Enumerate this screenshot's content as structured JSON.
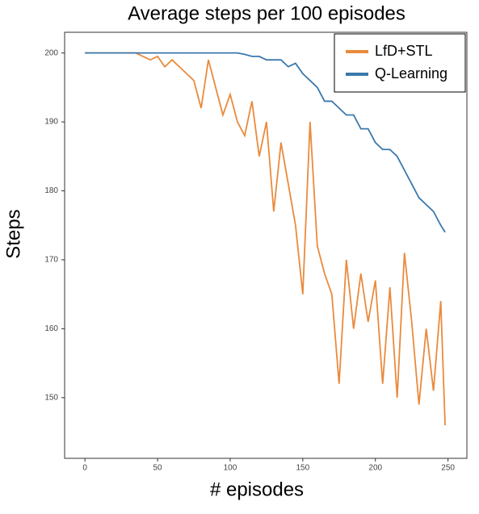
{
  "chart_data": {
    "type": "line",
    "title": "Average steps per 100 episodes",
    "x_label": "# episodes",
    "y_label": "Steps",
    "x": [
      0,
      5,
      10,
      15,
      20,
      25,
      30,
      35,
      40,
      45,
      50,
      55,
      60,
      65,
      70,
      75,
      80,
      85,
      90,
      95,
      100,
      105,
      110,
      115,
      120,
      125,
      130,
      135,
      140,
      145,
      150,
      155,
      160,
      165,
      170,
      175,
      180,
      185,
      190,
      195,
      200,
      205,
      210,
      215,
      220,
      225,
      230,
      235,
      240,
      245,
      248
    ],
    "series": [
      {
        "name": "LfD+STL",
        "color": "#ea8a3c",
        "values": [
          200,
          200,
          200,
          200,
          200,
          200,
          200,
          200,
          199.5,
          199,
          199.5,
          198,
          199,
          198,
          197,
          196,
          192,
          199,
          195,
          191,
          194,
          190,
          188,
          193,
          185,
          190,
          177,
          187,
          181,
          175,
          165,
          190,
          172,
          168,
          165,
          152,
          170,
          160,
          168,
          161,
          167,
          152,
          166,
          150,
          171,
          161,
          149,
          160,
          151,
          164,
          146
        ]
      },
      {
        "name": "Q-Learning",
        "color": "#3a78ac",
        "values": [
          200,
          200,
          200,
          200,
          200,
          200,
          200,
          200,
          200,
          200,
          200,
          200,
          200,
          200,
          200,
          200,
          200,
          200,
          200,
          200,
          200,
          200,
          199.8,
          199.5,
          199.5,
          199,
          199,
          199,
          198,
          198.5,
          197,
          196,
          195,
          193,
          193,
          192,
          191,
          191,
          189,
          189,
          187,
          186,
          186,
          185,
          183,
          181,
          179,
          178,
          177,
          175,
          174
        ]
      }
    ],
    "xlim": [
      -14,
      263
    ],
    "ylim": [
      141.2,
      203
    ],
    "xticks": [
      0,
      50,
      100,
      150,
      200,
      250
    ],
    "yticks": [
      150,
      160,
      170,
      180,
      190,
      200
    ],
    "legend": "upper right"
  }
}
